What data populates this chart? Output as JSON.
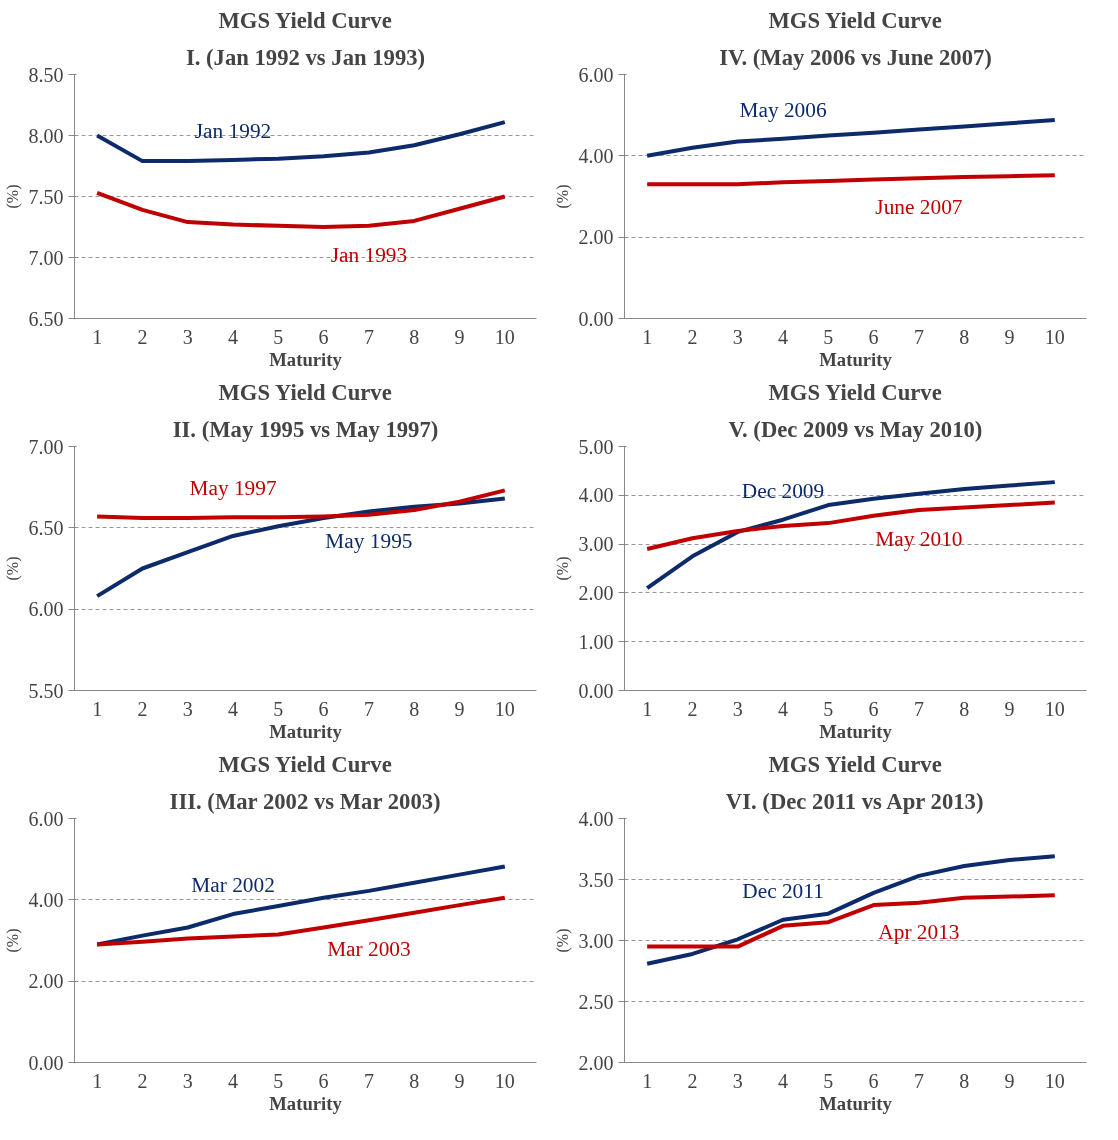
{
  "chart_data": [
    {
      "type": "line",
      "title": "MGS Yield Curve",
      "subtitle": "I. (Jan 1992 vs Jan 1993)",
      "xlabel": "Maturity",
      "ylabel": "(%)",
      "categories": [
        "1",
        "2",
        "3",
        "4",
        "5",
        "6",
        "7",
        "8",
        "9",
        "10"
      ],
      "ylim": [
        6.5,
        8.5
      ],
      "yticks": [
        {
          "value": 6.5,
          "label": "6.50"
        },
        {
          "value": 7.0,
          "label": "7.00"
        },
        {
          "value": 7.5,
          "label": "7.50"
        },
        {
          "value": 8.0,
          "label": "8.00"
        },
        {
          "value": 8.5,
          "label": "8.50"
        }
      ],
      "grid": "y",
      "series": [
        {
          "name": "Jan 1992",
          "color": "#0d2a6b",
          "values": [
            8.0,
            7.79,
            7.79,
            7.8,
            7.81,
            7.83,
            7.86,
            7.92,
            8.01,
            8.11
          ]
        },
        {
          "name": "Jan 1993",
          "color": "#c00000",
          "values": [
            7.53,
            7.39,
            7.29,
            7.27,
            7.26,
            7.25,
            7.26,
            7.3,
            7.4,
            7.5
          ]
        }
      ]
    },
    {
      "type": "line",
      "title": "MGS Yield Curve",
      "subtitle": "IV. (May 2006 vs June 2007)",
      "xlabel": "Maturity",
      "ylabel": "(%)",
      "categories": [
        "1",
        "2",
        "3",
        "4",
        "5",
        "6",
        "7",
        "8",
        "9",
        "10"
      ],
      "ylim": [
        0,
        6
      ],
      "yticks": [
        {
          "value": 0,
          "label": "0.00"
        },
        {
          "value": 2,
          "label": "2.00"
        },
        {
          "value": 4,
          "label": "4.00"
        },
        {
          "value": 6,
          "label": "6.00"
        }
      ],
      "grid": "y",
      "series": [
        {
          "name": "May 2006",
          "color": "#0d2a6b",
          "values": [
            4.0,
            4.2,
            4.35,
            4.42,
            4.5,
            4.57,
            4.65,
            4.72,
            4.8,
            4.88
          ]
        },
        {
          "name": "June 2007",
          "color": "#c00000",
          "values": [
            3.3,
            3.3,
            3.3,
            3.35,
            3.38,
            3.42,
            3.45,
            3.48,
            3.5,
            3.52
          ]
        }
      ]
    },
    {
      "type": "line",
      "title": "MGS Yield Curve",
      "subtitle": "II. (May 1995 vs May 1997)",
      "xlabel": "Maturity",
      "ylabel": "(%)",
      "categories": [
        "1",
        "2",
        "3",
        "4",
        "5",
        "6",
        "7",
        "8",
        "9",
        "10"
      ],
      "ylim": [
        5.5,
        7.0
      ],
      "yticks": [
        {
          "value": 5.5,
          "label": "5.50"
        },
        {
          "value": 6.0,
          "label": "6.00"
        },
        {
          "value": 6.5,
          "label": "6.50"
        },
        {
          "value": 7.0,
          "label": "7.00"
        }
      ],
      "grid": "y",
      "series": [
        {
          "name": "May 1995",
          "color": "#0d2a6b",
          "values": [
            6.08,
            6.25,
            6.35,
            6.45,
            6.51,
            6.56,
            6.6,
            6.63,
            6.65,
            6.68
          ]
        },
        {
          "name": "May 1997",
          "color": "#c00000",
          "values": [
            6.57,
            6.56,
            6.56,
            6.565,
            6.565,
            6.57,
            6.58,
            6.61,
            6.66,
            6.73
          ]
        }
      ]
    },
    {
      "type": "line",
      "title": "MGS Yield Curve",
      "subtitle": "V. (Dec 2009 vs May 2010)",
      "xlabel": "Maturity",
      "ylabel": "(%)",
      "categories": [
        "1",
        "2",
        "3",
        "4",
        "5",
        "6",
        "7",
        "8",
        "9",
        "10"
      ],
      "ylim": [
        0,
        5
      ],
      "yticks": [
        {
          "value": 0,
          "label": "0.00"
        },
        {
          "value": 1,
          "label": "1.00"
        },
        {
          "value": 2,
          "label": "2.00"
        },
        {
          "value": 3,
          "label": "3.00"
        },
        {
          "value": 4,
          "label": "4.00"
        },
        {
          "value": 5,
          "label": "5.00"
        }
      ],
      "grid": "y",
      "series": [
        {
          "name": "Dec 2009",
          "color": "#0d2a6b",
          "values": [
            2.1,
            2.75,
            3.25,
            3.5,
            3.8,
            3.93,
            4.03,
            4.13,
            4.2,
            4.27
          ]
        },
        {
          "name": "May 2010",
          "color": "#c00000",
          "values": [
            2.9,
            3.12,
            3.27,
            3.37,
            3.43,
            3.58,
            3.7,
            3.75,
            3.8,
            3.85
          ]
        }
      ]
    },
    {
      "type": "line",
      "title": "MGS Yield Curve",
      "subtitle": "III. (Mar 2002 vs Mar 2003)",
      "xlabel": "Maturity",
      "ylabel": "(%)",
      "categories": [
        "1",
        "2",
        "3",
        "4",
        "5",
        "6",
        "7",
        "8",
        "9",
        "10"
      ],
      "ylim": [
        0,
        6
      ],
      "yticks": [
        {
          "value": 0,
          "label": "0.00"
        },
        {
          "value": 2,
          "label": "2.00"
        },
        {
          "value": 4,
          "label": "4.00"
        },
        {
          "value": 6,
          "label": "6.00"
        }
      ],
      "grid": "y",
      "series": [
        {
          "name": "Mar 2002",
          "color": "#0d2a6b",
          "values": [
            2.9,
            3.12,
            3.32,
            3.65,
            3.85,
            4.05,
            4.22,
            4.42,
            4.62,
            4.82
          ]
        },
        {
          "name": "Mar 2003",
          "color": "#c00000",
          "values": [
            2.9,
            2.97,
            3.05,
            3.1,
            3.15,
            3.32,
            3.5,
            3.68,
            3.87,
            4.05
          ]
        }
      ]
    },
    {
      "type": "line",
      "title": "MGS Yield Curve",
      "subtitle": "VI. (Dec 2011 vs Apr 2013)",
      "xlabel": "Maturity",
      "ylabel": "(%)",
      "categories": [
        "1",
        "2",
        "3",
        "4",
        "5",
        "6",
        "7",
        "8",
        "9",
        "10"
      ],
      "ylim": [
        2.0,
        4.0
      ],
      "yticks": [
        {
          "value": 2.0,
          "label": "2.00"
        },
        {
          "value": 2.5,
          "label": "2.50"
        },
        {
          "value": 3.0,
          "label": "3.00"
        },
        {
          "value": 3.5,
          "label": "3.50"
        },
        {
          "value": 4.0,
          "label": "4.00"
        }
      ],
      "grid": "y",
      "series": [
        {
          "name": "Dec 2011",
          "color": "#0d2a6b",
          "values": [
            2.81,
            2.89,
            3.01,
            3.17,
            3.22,
            3.39,
            3.53,
            3.61,
            3.66,
            3.69
          ]
        },
        {
          "name": "Apr 2013",
          "color": "#c00000",
          "values": [
            2.95,
            2.95,
            2.95,
            3.12,
            3.15,
            3.29,
            3.31,
            3.35,
            3.36,
            3.37
          ]
        }
      ]
    }
  ]
}
